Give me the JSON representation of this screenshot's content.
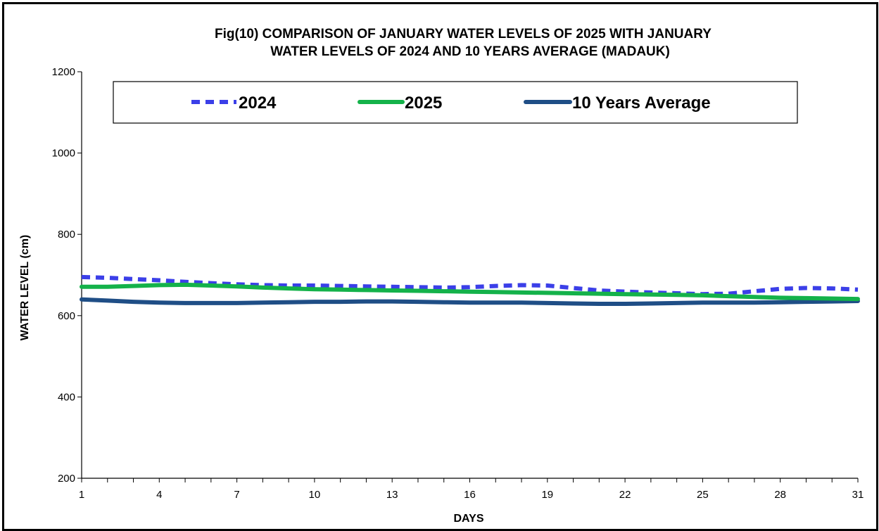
{
  "chart_data": {
    "type": "line",
    "title_lines": [
      "Fig(10)  COMPARISON OF JANUARY  WATER LEVELS OF  2025  WITH JANUARY",
      "WATER  LEVELS OF 2024  AND 10 YEARS  AVERAGE  (MADAUK)"
    ],
    "xlabel": "DAYS",
    "ylabel": "WATER LEVEL (cm)",
    "xlim": [
      1,
      31
    ],
    "ylim": [
      200,
      1200
    ],
    "x_ticks": [
      1,
      4,
      7,
      10,
      13,
      16,
      19,
      22,
      25,
      28,
      31
    ],
    "y_ticks": [
      200,
      400,
      600,
      800,
      1000,
      1200
    ],
    "grid": false,
    "legend_position": "top",
    "x": [
      1,
      2,
      3,
      4,
      5,
      6,
      7,
      8,
      9,
      10,
      11,
      12,
      13,
      14,
      15,
      16,
      17,
      18,
      19,
      20,
      21,
      22,
      23,
      24,
      25,
      26,
      27,
      28,
      29,
      30,
      31
    ],
    "series": [
      {
        "name": "2024",
        "color": "#3b3fe8",
        "style": "dashed",
        "values": [
          695,
          693,
          690,
          687,
          683,
          680,
          677,
          675,
          674,
          674,
          673,
          672,
          671,
          670,
          669,
          670,
          673,
          675,
          674,
          668,
          662,
          659,
          657,
          655,
          653,
          654,
          660,
          666,
          668,
          667,
          664
        ]
      },
      {
        "name": "2025",
        "color": "#14b24a",
        "style": "solid",
        "values": [
          671,
          671,
          673,
          675,
          676,
          674,
          672,
          669,
          667,
          665,
          664,
          663,
          662,
          661,
          660,
          659,
          658,
          657,
          656,
          655,
          654,
          653,
          652,
          651,
          650,
          648,
          646,
          644,
          643,
          642,
          641
        ]
      },
      {
        "name": "10 Years Average",
        "color": "#1f4e86",
        "style": "solid",
        "values": [
          640,
          637,
          634,
          632,
          631,
          631,
          631,
          632,
          633,
          634,
          634,
          635,
          635,
          634,
          633,
          632,
          632,
          632,
          631,
          630,
          629,
          629,
          630,
          631,
          632,
          632,
          632,
          633,
          634,
          635,
          636
        ]
      }
    ]
  }
}
